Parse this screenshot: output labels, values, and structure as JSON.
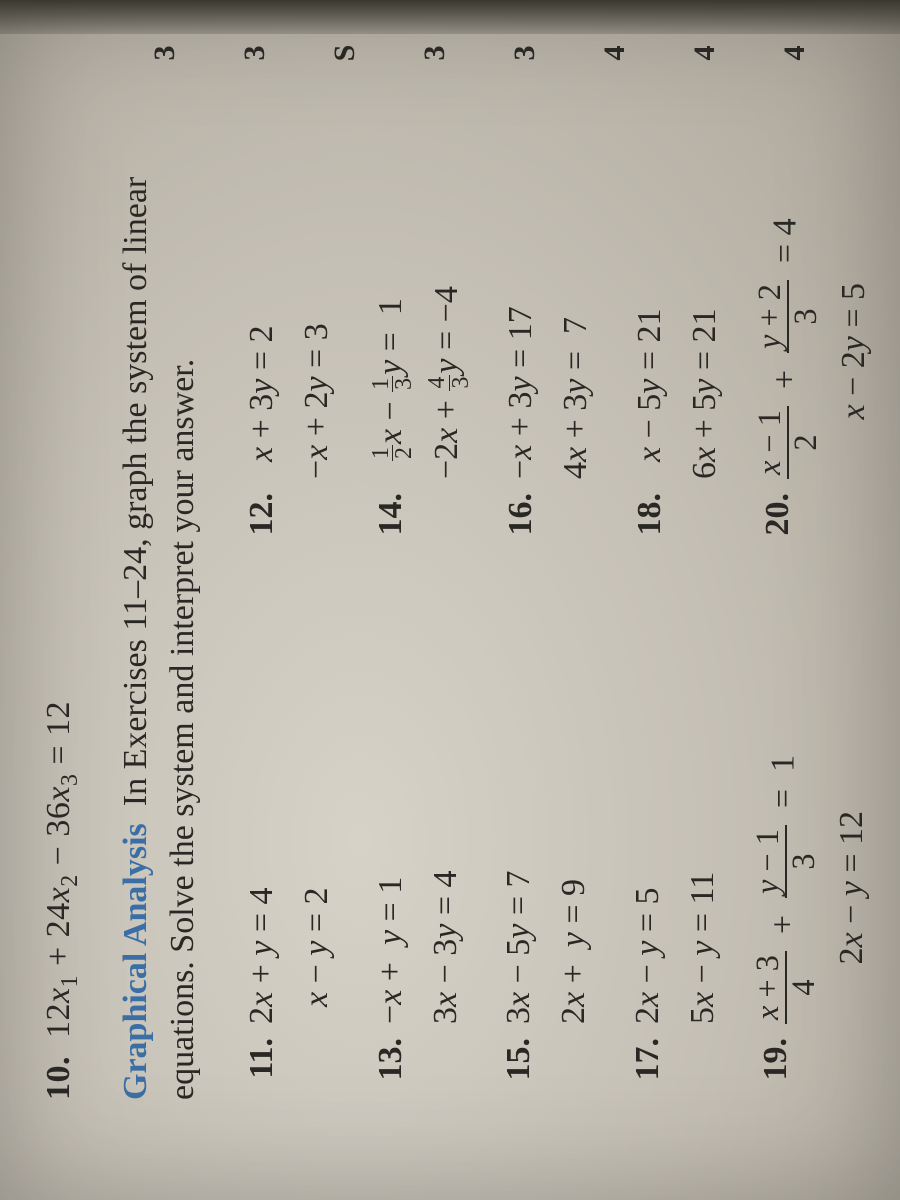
{
  "colors": {
    "highlight": "#3a6ea5",
    "text": "#2a2824",
    "paper_light": "#d6d2c8",
    "paper_mid": "#c4bfb4",
    "paper_dark": "#aca69a"
  },
  "typography": {
    "body_fontsize": 34,
    "font_family": "Times New Roman",
    "highlight_weight": 600
  },
  "top_equation": {
    "number": "10.",
    "expr": "12x₁ + 24x₂ − 36x₃ = 12"
  },
  "section": {
    "highlight": "Graphical Analysis",
    "rest": "In Exercises 11–24, graph the system of linear equations. Solve the system and interpret your answer."
  },
  "left_column": [
    {
      "num": "11.",
      "lines": [
        "2x + y = 4",
        "x − y = 2"
      ]
    },
    {
      "num": "13.",
      "lines": [
        "−x + y = 1",
        "3x − 3y = 4"
      ]
    },
    {
      "num": "15.",
      "lines": [
        "3x − 5y = 7",
        "2x + y = 9"
      ]
    },
    {
      "num": "17.",
      "lines": [
        "2x − y = 5",
        "5x − y = 11"
      ]
    },
    {
      "num": "19.",
      "lines": [
        "(x+3)/4 + (y−1)/3 = 1",
        "2x − y = 12"
      ]
    }
  ],
  "right_column": [
    {
      "num": "12.",
      "lines": [
        "x + 3y = 2",
        "−x + 2y = 3"
      ]
    },
    {
      "num": "14.",
      "lines": [
        "(1/2)x − (1/3)y = 1",
        "−2x + (4/3)y = −4"
      ]
    },
    {
      "num": "16.",
      "lines": [
        "−x + 3y = 17",
        "4x + 3y = 7"
      ]
    },
    {
      "num": "18.",
      "lines": [
        "x − 5y = 21",
        "6x + 5y = 21"
      ]
    },
    {
      "num": "20.",
      "lines": [
        "(x−1)/2 + (y+2)/3 = 4",
        "x − 2y = 5"
      ]
    }
  ],
  "margin_marks": [
    "3",
    "3",
    "S",
    "3",
    "3",
    "4",
    "4",
    "4"
  ]
}
